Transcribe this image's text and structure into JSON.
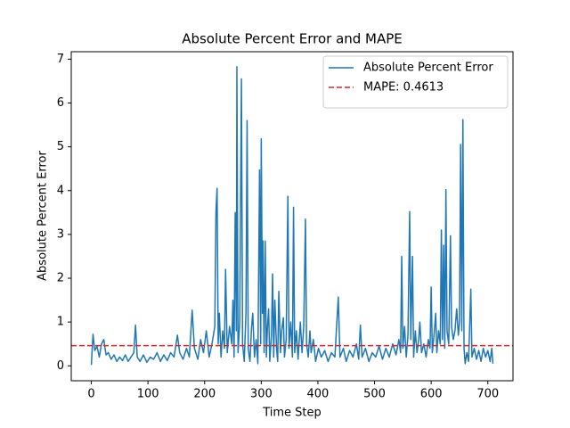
{
  "chart_data": {
    "type": "line",
    "title": "Absolute Percent Error and MAPE",
    "xlabel": "Time Step",
    "ylabel": "Absolute Percent Error",
    "x": [
      0,
      3,
      6,
      10,
      14,
      18,
      22,
      26,
      30,
      35,
      40,
      45,
      50,
      55,
      60,
      65,
      70,
      75,
      78,
      81,
      86,
      92,
      98,
      104,
      110,
      116,
      122,
      128,
      134,
      140,
      146,
      152,
      156,
      162,
      168,
      173,
      178,
      182,
      188,
      193,
      198,
      203,
      208,
      213,
      218,
      220,
      222,
      224,
      226,
      229,
      232,
      235,
      237,
      240,
      244,
      248,
      250,
      252,
      254,
      256,
      257,
      259,
      262,
      265,
      267,
      270,
      273,
      275,
      277,
      280,
      283,
      285,
      288,
      291,
      294,
      297,
      299,
      300,
      302,
      303,
      305,
      307,
      309,
      311,
      313,
      315,
      318,
      320,
      322,
      324,
      327,
      329,
      331,
      334,
      336,
      339,
      341,
      344,
      347,
      349,
      352,
      355,
      357,
      359,
      362,
      365,
      369,
      372,
      375,
      378,
      380,
      383,
      386,
      388,
      392,
      396,
      401,
      406,
      412,
      418,
      424,
      430,
      436,
      439,
      445,
      450,
      456,
      462,
      468,
      472,
      475,
      478,
      484,
      490,
      496,
      502,
      508,
      514,
      520,
      526,
      532,
      538,
      543,
      546,
      548,
      550,
      553,
      556,
      559,
      562,
      564,
      567,
      569,
      572,
      575,
      578,
      580,
      583,
      587,
      591,
      595,
      598,
      600,
      602,
      605,
      608,
      610,
      613,
      616,
      618,
      620,
      622,
      624,
      626,
      628,
      631,
      634,
      636,
      639,
      642,
      645,
      648,
      650,
      652,
      654,
      656,
      658,
      660,
      663,
      666,
      670,
      672,
      676,
      680,
      684,
      688,
      692,
      696,
      700,
      704,
      707,
      709
    ],
    "series": [
      {
        "name": "Absolute Percent Error",
        "color": "#1f77b4",
        "values": [
          0.02,
          0.72,
          0.35,
          0.45,
          0.2,
          0.5,
          0.6,
          0.25,
          0.3,
          0.15,
          0.25,
          0.1,
          0.2,
          0.12,
          0.25,
          0.1,
          0.2,
          0.3,
          0.93,
          0.2,
          0.1,
          0.25,
          0.08,
          0.2,
          0.15,
          0.3,
          0.1,
          0.25,
          0.12,
          0.3,
          0.2,
          0.7,
          0.3,
          0.15,
          0.4,
          0.2,
          1.27,
          0.4,
          0.15,
          0.6,
          0.3,
          0.8,
          0.2,
          0.5,
          0.9,
          3.5,
          4.05,
          0.5,
          1.2,
          0.2,
          0.8,
          0.4,
          2.2,
          0.3,
          0.9,
          0.5,
          1.5,
          0.2,
          3.5,
          0.8,
          6.83,
          0.3,
          1.0,
          6.55,
          0.5,
          0.1,
          1.2,
          5.6,
          0.4,
          0.1,
          0.9,
          1.2,
          0.2,
          0.6,
          0.05,
          4.47,
          0.5,
          5.18,
          1.2,
          2.85,
          0.3,
          2.85,
          0.2,
          0.9,
          1.3,
          0.1,
          0.7,
          2.1,
          0.2,
          1.5,
          0.4,
          0.1,
          1.7,
          0.3,
          0.8,
          1.1,
          0.2,
          0.6,
          3.87,
          0.4,
          1.0,
          0.2,
          3.62,
          0.3,
          0.8,
          0.15,
          1.0,
          0.3,
          0.9,
          3.35,
          0.5,
          0.2,
          0.8,
          0.3,
          0.6,
          0.1,
          0.4,
          0.2,
          0.35,
          0.1,
          0.3,
          0.2,
          1.57,
          0.2,
          0.4,
          0.1,
          0.35,
          0.2,
          0.5,
          0.15,
          0.93,
          0.2,
          0.4,
          0.1,
          0.3,
          0.2,
          0.45,
          0.15,
          0.4,
          0.2,
          0.5,
          0.25,
          0.6,
          0.3,
          2.5,
          0.4,
          0.9,
          0.2,
          0.7,
          3.52,
          0.6,
          2.5,
          0.2,
          0.8,
          0.3,
          0.6,
          1.0,
          0.3,
          0.5,
          0.2,
          0.6,
          0.4,
          1.8,
          0.3,
          0.7,
          1.2,
          0.3,
          0.8,
          0.5,
          3.1,
          0.6,
          2.75,
          0.4,
          4.02,
          0.8,
          0.5,
          2.97,
          0.9,
          0.6,
          0.8,
          1.3,
          0.7,
          1.0,
          5.05,
          0.8,
          5.62,
          0.4,
          0.05,
          0.3,
          0.1,
          1.75,
          0.2,
          0.4,
          0.15,
          0.35,
          0.1,
          0.4,
          0.2,
          0.35,
          0.1,
          0.4,
          0.05
        ]
      }
    ],
    "hline": {
      "name": "MAPE: 0.4613",
      "value": 0.4613,
      "color": "#d62728",
      "dashed": true
    },
    "xlim": [
      -35.45,
      744.45
    ],
    "ylim": [
      -0.34,
      7.17
    ],
    "xticks": [
      0,
      100,
      200,
      300,
      400,
      500,
      600,
      700
    ],
    "yticks": [
      0,
      1,
      2,
      3,
      4,
      5,
      6,
      7
    ],
    "legend": "upper right"
  }
}
